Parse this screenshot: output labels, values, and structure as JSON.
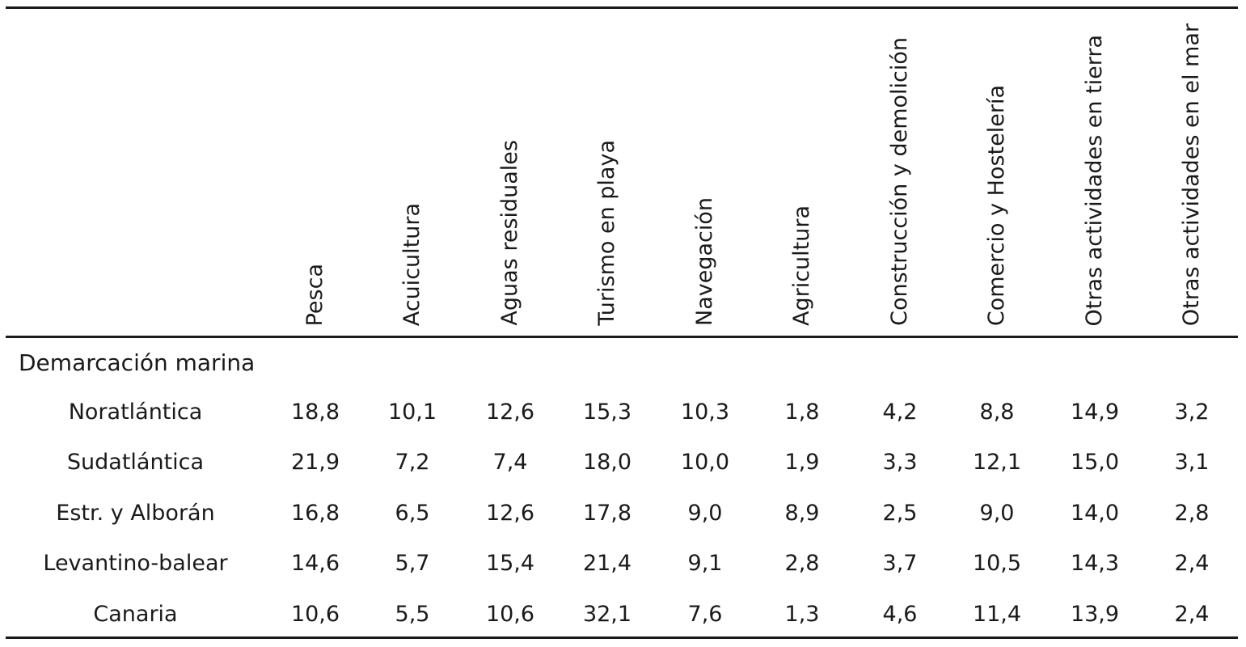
{
  "table": {
    "columns": [
      "Pesca",
      "Acuicultura",
      "Aguas residuales",
      "Turismo en playa",
      "Navegación",
      "Agricultura",
      "Construcción y demolición",
      "Comercio y Hostelería",
      "Otras actividades en tierra",
      "Otras actividades en el mar"
    ],
    "section_title": "Demarcación marina",
    "rows": [
      {
        "label": "Noratlántica",
        "values": [
          "18,8",
          "10,1",
          "12,6",
          "15,3",
          "10,3",
          "1,8",
          "4,2",
          "8,8",
          "14,9",
          "3,2"
        ]
      },
      {
        "label": "Sudatlántica",
        "values": [
          "21,9",
          "7,2",
          "7,4",
          "18,0",
          "10,0",
          "1,9",
          "3,3",
          "12,1",
          "15,0",
          "3,1"
        ]
      },
      {
        "label": "Estr. y Alborán",
        "values": [
          "16,8",
          "6,5",
          "12,6",
          "17,8",
          "9,0",
          "8,9",
          "2,5",
          "9,0",
          "14,0",
          "2,8"
        ]
      },
      {
        "label": "Levantino-balear",
        "values": [
          "14,6",
          "5,7",
          "15,4",
          "21,4",
          "9,1",
          "2,8",
          "3,7",
          "10,5",
          "14,3",
          "2,4"
        ]
      },
      {
        "label": "Canaria",
        "values": [
          "10,6",
          "5,5",
          "10,6",
          "32,1",
          "7,6",
          "1,3",
          "4,6",
          "11,4",
          "13,9",
          "2,4"
        ]
      }
    ]
  }
}
